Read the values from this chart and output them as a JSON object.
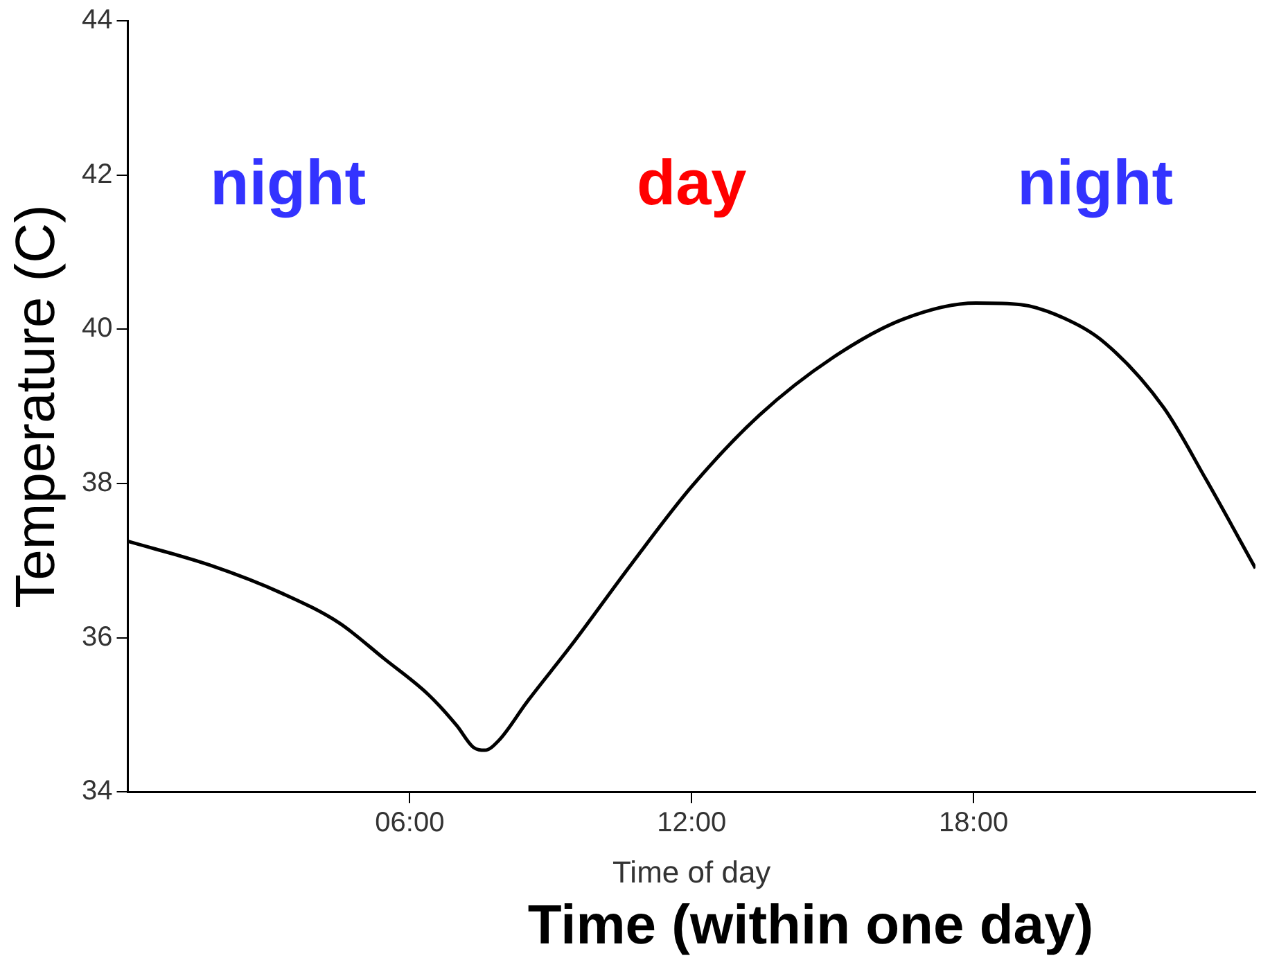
{
  "chart_data": {
    "type": "line",
    "xlabel": "Time of day",
    "ylabel": "Temperature (C)",
    "x": [
      0,
      1.75,
      3.3,
      4.5,
      5.45,
      6.4,
      7.0,
      7.35,
      7.6,
      7.9,
      8.5,
      9.45,
      10.7,
      12.0,
      13.45,
      15.0,
      16.5,
      18.05,
      19.0,
      19.9,
      20.8,
      22.05,
      22.95,
      24
    ],
    "series": [
      {
        "color": "#000000",
        "values": [
          37.25,
          36.94,
          36.57,
          36.19,
          35.73,
          35.26,
          34.86,
          34.58,
          34.54,
          34.67,
          35.17,
          35.91,
          36.94,
          37.96,
          38.89,
          39.63,
          40.13,
          40.34,
          40.32,
          40.15,
          39.82,
          38.98,
          38.05,
          36.9
        ]
      }
    ],
    "xlim": [
      0,
      24
    ],
    "xticks": [
      {
        "value": 6,
        "label": "06:00"
      },
      {
        "value": 12,
        "label": "12:00"
      },
      {
        "value": 18,
        "label": "18:00"
      }
    ],
    "ylim": [
      34,
      44
    ],
    "yticks": [
      34,
      36,
      38,
      40,
      42,
      44
    ],
    "grid": false,
    "legend": false,
    "marker": "none",
    "line_style": "solid",
    "annotations": [
      "night",
      "day",
      "night",
      "Time (within one day)"
    ]
  }
}
